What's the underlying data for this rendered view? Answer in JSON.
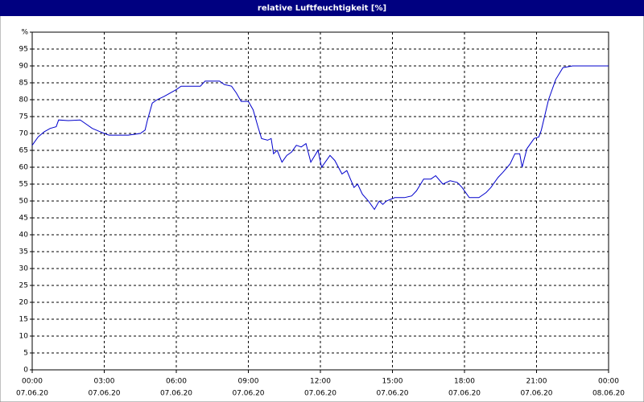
{
  "chart_data": {
    "type": "line",
    "title": "relative Luftfeuchtigkeit [%]",
    "x": [
      0,
      0.25,
      0.5,
      0.75,
      1.0,
      1.1,
      1.5,
      2.0,
      2.2,
      2.5,
      3.0,
      3.2,
      4.0,
      4.5,
      4.7,
      4.8,
      5.0,
      5.2,
      5.5,
      6.0,
      6.2,
      7.0,
      7.2,
      7.8,
      8.0,
      8.3,
      8.5,
      8.7,
      9.0,
      9.2,
      9.4,
      9.55,
      9.8,
      9.95,
      10.05,
      10.2,
      10.4,
      10.6,
      10.8,
      11.0,
      11.2,
      11.4,
      11.6,
      11.9,
      12.05,
      12.4,
      12.6,
      12.9,
      13.1,
      13.4,
      13.55,
      13.75,
      14.0,
      14.25,
      14.45,
      14.6,
      14.75,
      15.1,
      15.5,
      15.8,
      16.0,
      16.3,
      16.6,
      16.8,
      17.1,
      17.4,
      17.7,
      17.9,
      18.2,
      18.6,
      18.9,
      19.1,
      19.4,
      19.6,
      19.9,
      20.1,
      20.3,
      20.4,
      20.6,
      20.9,
      21.1,
      21.2,
      21.5,
      21.8,
      22.1,
      22.5,
      23.0,
      24.0
    ],
    "values": [
      66.5,
      69,
      70.5,
      71.5,
      72,
      74,
      73.8,
      74,
      73,
      71.5,
      70,
      69.5,
      69.5,
      70,
      71,
      74,
      79,
      80,
      81,
      83,
      84,
      84,
      85.5,
      85.5,
      84.5,
      84,
      82,
      79.5,
      79.5,
      77,
      72,
      68.5,
      68,
      68.5,
      64,
      65,
      61.5,
      63.5,
      64.5,
      66.5,
      66,
      67,
      61.5,
      65,
      60,
      63.5,
      62,
      58,
      59,
      54,
      55,
      52,
      50,
      47.5,
      50,
      49,
      50,
      51,
      51,
      51.5,
      53,
      56.5,
      56.5,
      57.5,
      55,
      56,
      55.5,
      54,
      51,
      51,
      52.5,
      54,
      57,
      58.5,
      61,
      64,
      64,
      60,
      65.5,
      68.5,
      69,
      71,
      80,
      86,
      89.5,
      90,
      90,
      90
    ],
    "color": "#0000cc",
    "xlim": [
      0,
      24
    ],
    "xticks": [
      {
        "value": 0,
        "label": "00:00"
      },
      {
        "value": 3,
        "label": "03:00"
      },
      {
        "value": 6,
        "label": "06:00"
      },
      {
        "value": 9,
        "label": "09:00"
      },
      {
        "value": 12,
        "label": "12:00"
      },
      {
        "value": 15,
        "label": "15:00"
      },
      {
        "value": 18,
        "label": "18:00"
      },
      {
        "value": 21,
        "label": "21:00"
      },
      {
        "value": 24,
        "label": "00:00"
      }
    ],
    "xtick_dates": [
      "07.06.20",
      "07.06.20",
      "07.06.20",
      "07.06.20",
      "07.06.20",
      "07.06.20",
      "07.06.20",
      "07.06.20",
      "08.06.20"
    ],
    "ylim": [
      0,
      100
    ],
    "yticks": [
      0,
      5,
      10,
      15,
      20,
      25,
      30,
      35,
      40,
      45,
      50,
      55,
      60,
      65,
      70,
      75,
      80,
      85,
      90,
      95,
      {
        "value": 100,
        "label": "%"
      }
    ],
    "grid": true
  }
}
